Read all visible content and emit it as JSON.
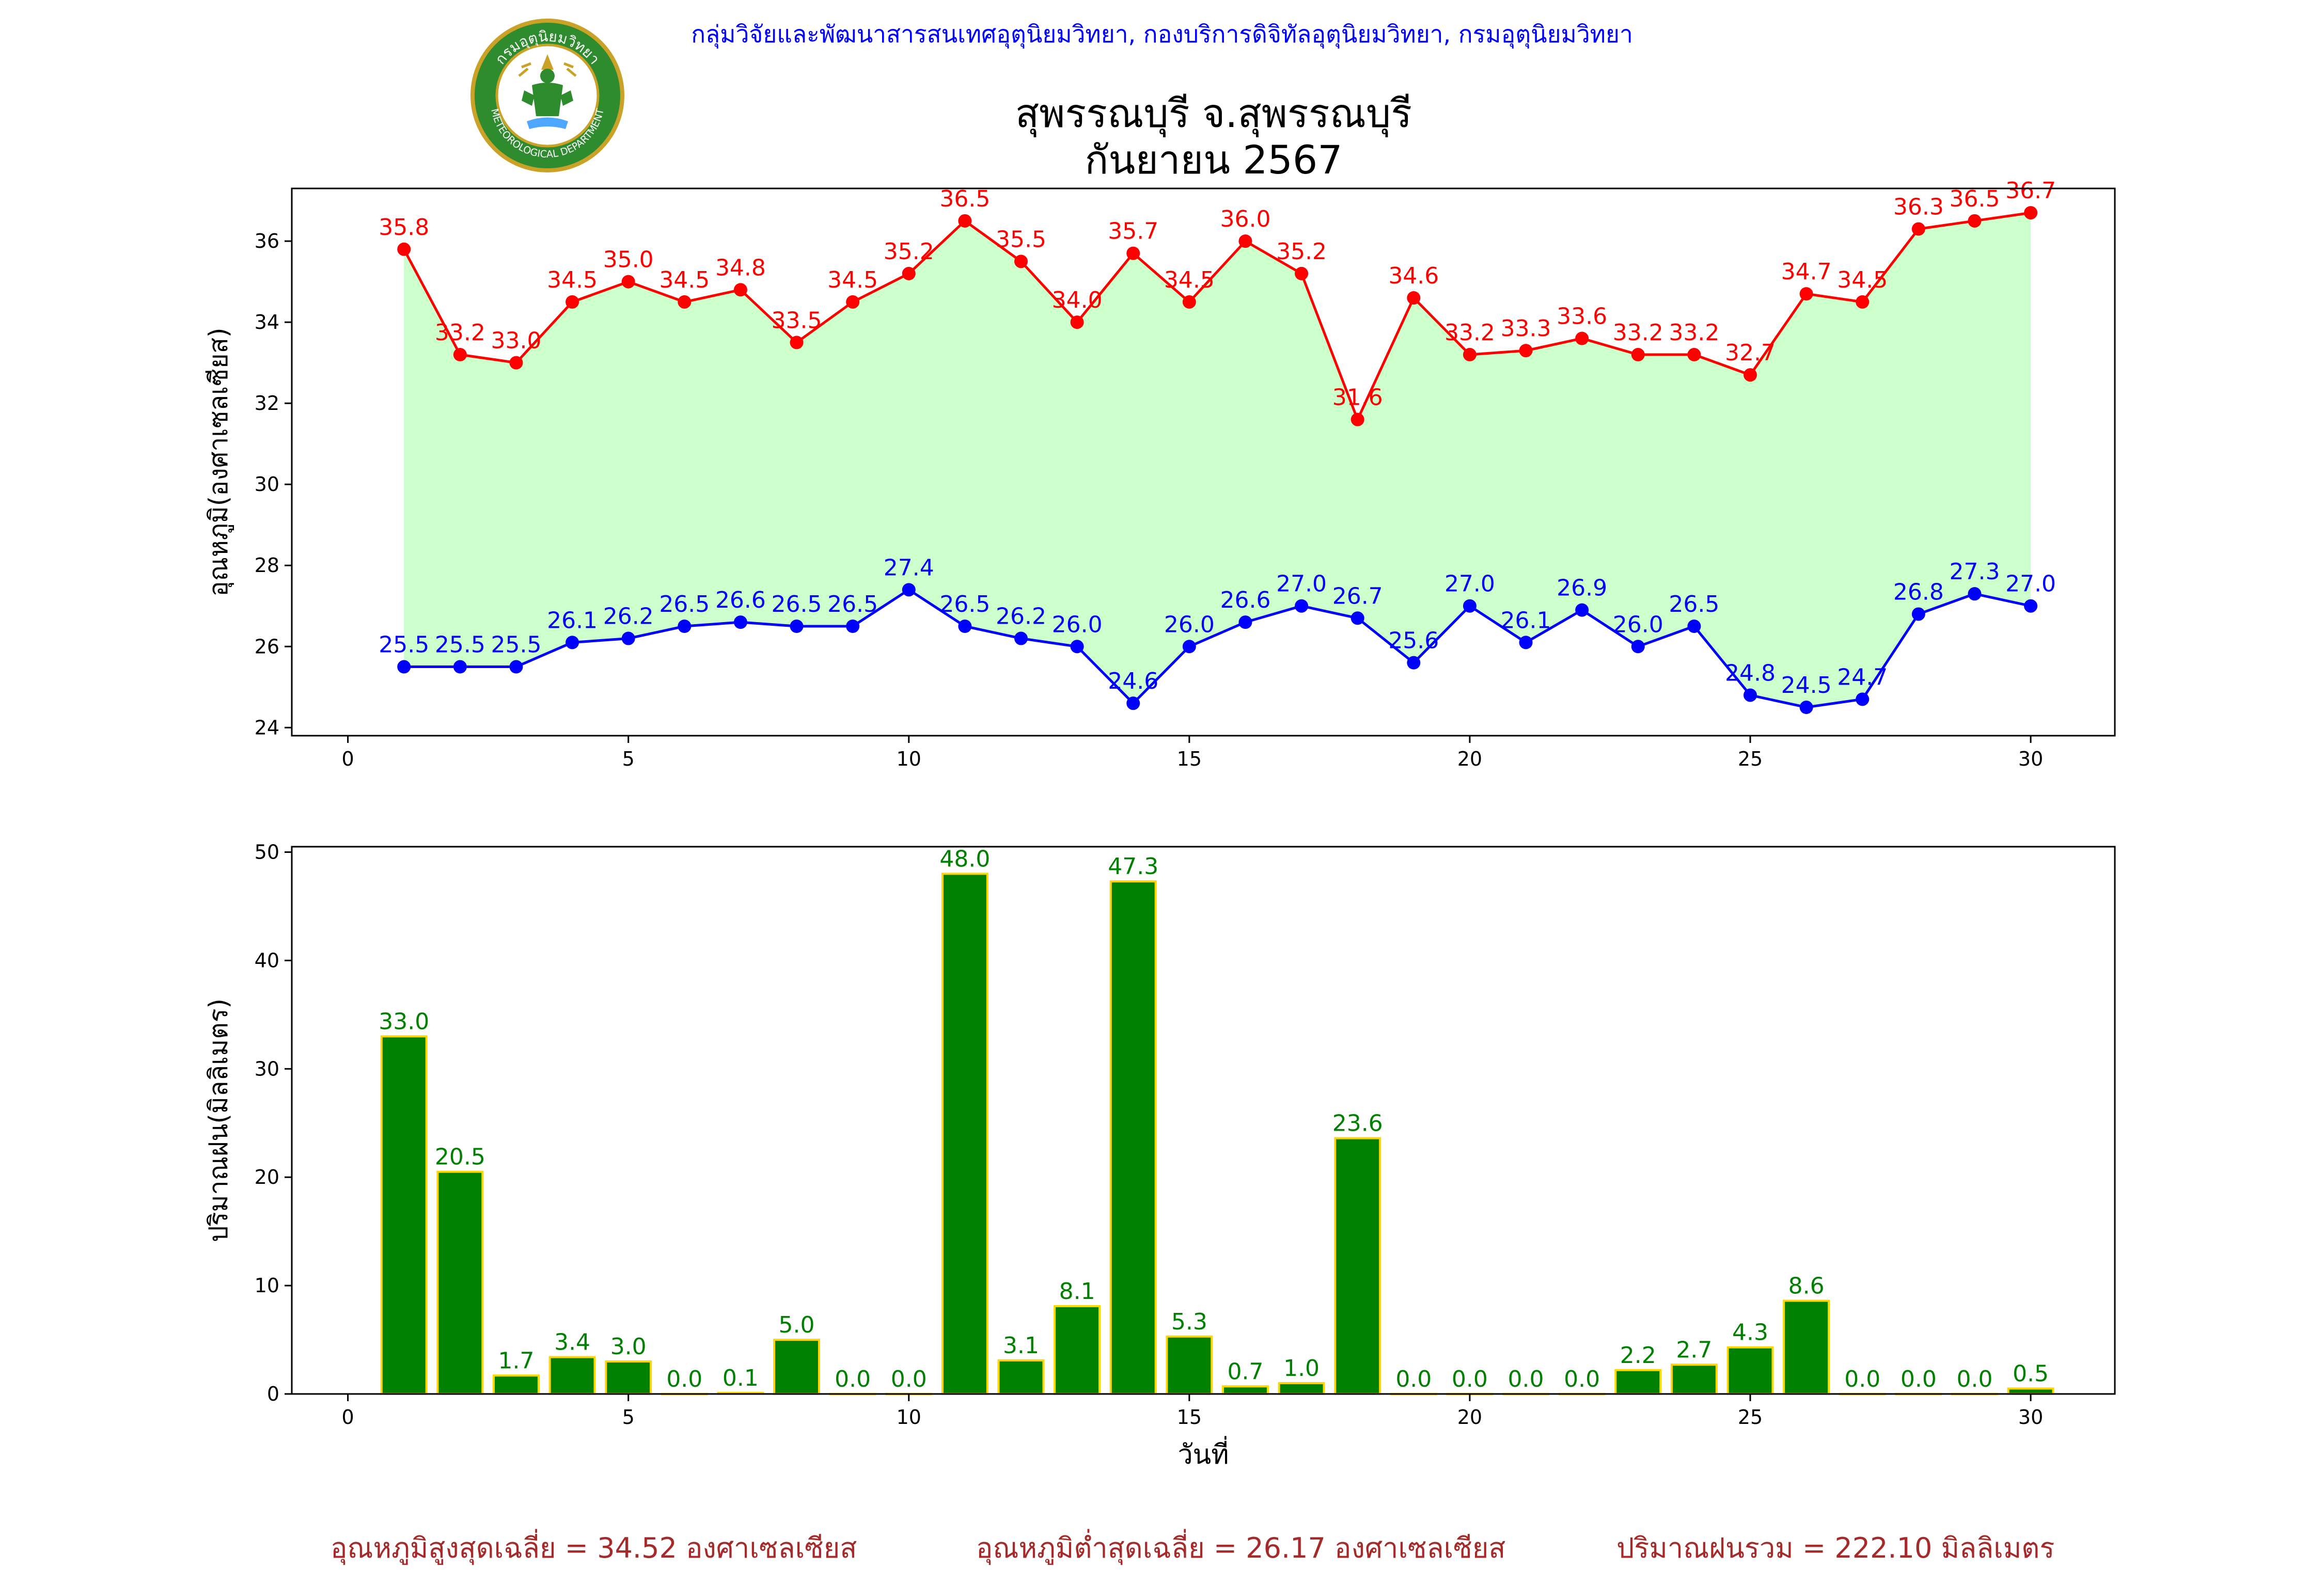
{
  "header": {
    "organization": "กลุ่มวิจัยและพัฒนาสารสนเทศอุตุนิยมวิทยา, กองบริการดิจิทัลอุตุนิยมวิทยา, กรมอุตุนิยมวิทยา",
    "title_line1": "สุพรรณบุรี จ.สุพรรณบุรี",
    "title_line2": "กันยายน 2567",
    "logo": {
      "icon": "meteorological-department-seal-icon",
      "text_top": "กรมอุตุนิยมวิทยา",
      "text_bottom": "METEOROLOGICAL DEPARTMENT"
    }
  },
  "footer": {
    "avg_max": "อุณหภูมิสูงสุดเฉลี่ย = 34.52 องศาเซลเซียส",
    "avg_min": "อุณหภูมิต่ำสุดเฉลี่ย = 26.17 องศาเซลเซียส",
    "total_rain": "ปริมาณฝนรวม = 222.10 มิลลิเมตร"
  },
  "chart_data": [
    {
      "type": "line",
      "ylabel": "อุณหภูมิ(องศาเซลเซียส)",
      "xlabel": "",
      "xlim": [
        -1,
        31.5
      ],
      "ylim": [
        23.8,
        37.3
      ],
      "x_ticks": [
        0,
        5,
        10,
        15,
        20,
        25,
        30
      ],
      "y_ticks": [
        24,
        26,
        28,
        30,
        32,
        34,
        36
      ],
      "fill_between": {
        "color": "#ccffcc"
      },
      "x": [
        1,
        2,
        3,
        4,
        5,
        6,
        7,
        8,
        9,
        10,
        11,
        12,
        13,
        14,
        15,
        16,
        17,
        18,
        19,
        20,
        21,
        22,
        23,
        24,
        25,
        26,
        27,
        28,
        29,
        30
      ],
      "series": [
        {
          "color": "#ff0000",
          "values": [
            35.8,
            33.2,
            33.0,
            34.5,
            35.0,
            34.5,
            34.8,
            33.5,
            34.5,
            35.2,
            36.5,
            35.5,
            34.0,
            35.7,
            34.5,
            36.0,
            35.2,
            31.6,
            34.6,
            33.2,
            33.3,
            33.6,
            33.2,
            33.2,
            32.7,
            34.7,
            34.5,
            36.3,
            36.5,
            36.7
          ]
        },
        {
          "color": "#0000ff",
          "values": [
            25.5,
            25.5,
            25.5,
            26.1,
            26.2,
            26.5,
            26.6,
            26.5,
            26.5,
            27.4,
            26.5,
            26.2,
            26.0,
            24.6,
            26.0,
            26.6,
            27.0,
            26.7,
            25.6,
            27.0,
            26.1,
            26.9,
            26.0,
            26.5,
            24.8,
            24.5,
            24.7,
            26.8,
            27.3,
            27.0
          ]
        }
      ]
    },
    {
      "type": "bar",
      "ylabel": "ปริมาณฝน(มิลลิเมตร)",
      "xlabel": "วันที่",
      "xlim": [
        -1,
        31.5
      ],
      "ylim": [
        0,
        50.5
      ],
      "x_ticks": [
        0,
        5,
        10,
        15,
        20,
        25,
        30
      ],
      "y_ticks": [
        0,
        10,
        20,
        30,
        40,
        50
      ],
      "bar_color": "#008000",
      "edge_color": "#ffd700",
      "label_color": "#008000",
      "x": [
        1,
        2,
        3,
        4,
        5,
        6,
        7,
        8,
        9,
        10,
        11,
        12,
        13,
        14,
        15,
        16,
        17,
        18,
        19,
        20,
        21,
        22,
        23,
        24,
        25,
        26,
        27,
        28,
        29,
        30
      ],
      "values": [
        33.0,
        20.5,
        1.7,
        3.4,
        3.0,
        0.0,
        0.1,
        5.0,
        0.0,
        0.0,
        48.0,
        3.1,
        8.1,
        47.3,
        5.3,
        0.7,
        1.0,
        23.6,
        0.0,
        0.0,
        0.0,
        0.0,
        2.2,
        2.7,
        4.3,
        8.6,
        0.0,
        0.0,
        0.0,
        0.5
      ]
    }
  ]
}
